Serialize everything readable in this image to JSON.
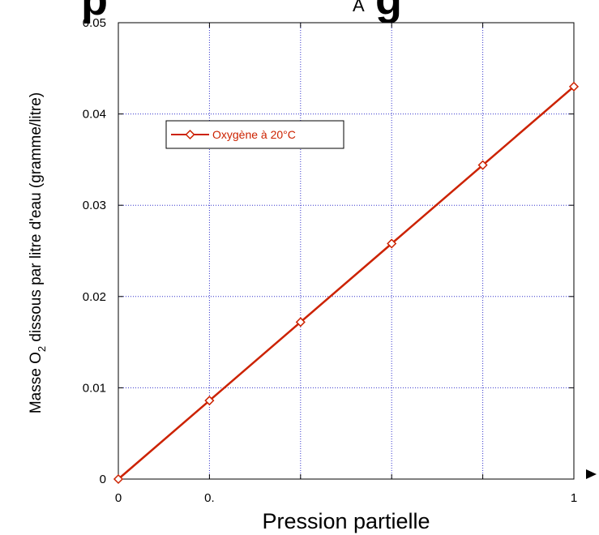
{
  "chart_data": {
    "type": "line",
    "xlabel": "Pression partielle",
    "ylabel": "Masse O2 dissous par litre d'eau (gramme/litre)",
    "ylabel_parts": {
      "before": "Masse O",
      "sub": "2",
      "after": " dissous par litre d'eau (gramme/litre)"
    },
    "x_ticks": [
      "0",
      "0.",
      "",
      "",
      "",
      "1"
    ],
    "y_ticks": [
      "0",
      "0.01",
      "0.02",
      "0.03",
      "0.04",
      "0.05"
    ],
    "xlim": [
      0,
      1
    ],
    "ylim": [
      0,
      0.05
    ],
    "grid": true,
    "legend_position": "top-left",
    "series": [
      {
        "name": "Oxygène à 20°C",
        "color": "#cc2200",
        "marker": "diamond-open",
        "x": [
          0,
          0.2,
          0.4,
          0.6,
          0.8,
          1.0
        ],
        "y": [
          0,
          0.0086,
          0.0172,
          0.0258,
          0.0344,
          0.043
        ]
      }
    ]
  },
  "header_fragment": {
    "left": "p",
    "mid": "A",
    "right": "g"
  },
  "colors": {
    "axis": "#000000",
    "grid": "#3333cc",
    "series": "#cc2200"
  }
}
